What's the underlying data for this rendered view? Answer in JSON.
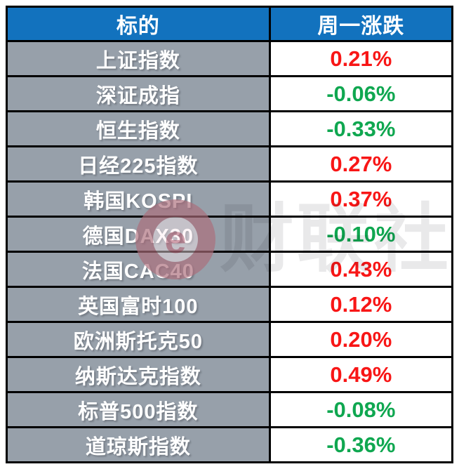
{
  "table": {
    "headers": [
      "标的",
      "周一涨跌"
    ],
    "rows": [
      {
        "label": "上证指数",
        "value": "0.21%",
        "direction": "up"
      },
      {
        "label": "深证成指",
        "value": "-0.06%",
        "direction": "down"
      },
      {
        "label": "恒生指数",
        "value": "-0.33%",
        "direction": "down"
      },
      {
        "label": "日经225指数",
        "value": "0.27%",
        "direction": "up"
      },
      {
        "label": "韩国KOSPI",
        "value": "0.37%",
        "direction": "up"
      },
      {
        "label": "德国DAX30",
        "value": "-0.10%",
        "direction": "down"
      },
      {
        "label": "法国CAC40",
        "value": "0.43%",
        "direction": "up"
      },
      {
        "label": "英国富时100",
        "value": "0.12%",
        "direction": "up"
      },
      {
        "label": "欧洲斯托克50",
        "value": "0.20%",
        "direction": "up"
      },
      {
        "label": "纳斯达克指数",
        "value": "0.49%",
        "direction": "up"
      },
      {
        "label": "标普500指数",
        "value": "-0.08%",
        "direction": "down"
      },
      {
        "label": "道琼斯指数",
        "value": "-0.36%",
        "direction": "down"
      }
    ]
  },
  "chart_data": {
    "type": "table",
    "title": "",
    "columns": [
      "标的",
      "周一涨跌"
    ],
    "categories": [
      "上证指数",
      "深证成指",
      "恒生指数",
      "日经225指数",
      "韩国KOSPI",
      "德国DAX30",
      "法国CAC40",
      "英国富时100",
      "欧洲斯托克50",
      "纳斯达克指数",
      "标普500指数",
      "道琼斯指数"
    ],
    "values_pct": [
      0.21,
      -0.06,
      -0.33,
      0.27,
      0.37,
      -0.1,
      0.43,
      0.12,
      0.2,
      0.49,
      -0.08,
      -0.36
    ],
    "color_rule": "positive values red, negative values green"
  },
  "watermark": {
    "text": "财联社",
    "logo_glyph": "e"
  },
  "colors": {
    "header_bg": "#1272BE",
    "label_bg": "#97A0AA",
    "up": "#F81616",
    "down": "#0FA750",
    "border": "#000000"
  }
}
